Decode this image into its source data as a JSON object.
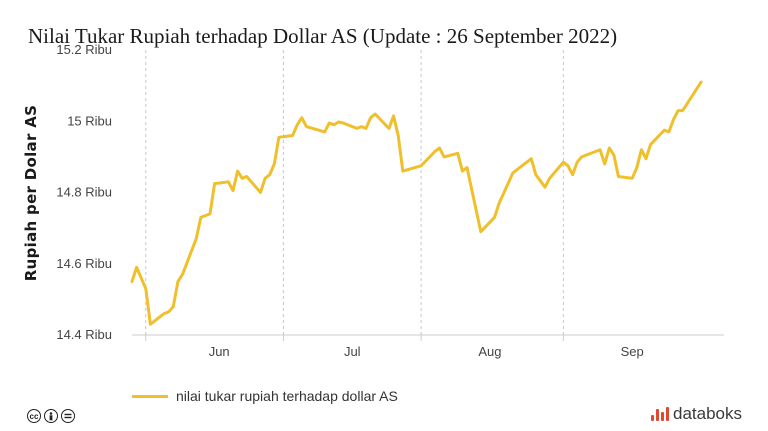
{
  "title": "Nilai Tukar Rupiah terhadap Dollar AS (Update : 26 September 2022)",
  "brand": "databoks",
  "colors": {
    "series": "#f0bf2c",
    "brand": "#e0492f"
  },
  "icons": [
    "creative-commons-icon",
    "attribution-icon",
    "no-derivatives-icon"
  ],
  "chart_data": {
    "type": "line",
    "ylabel": "Rupiah per Dolar AS",
    "ylim": [
      14400,
      15200
    ],
    "yticks": [
      {
        "value": 14400,
        "label": "14.4 Ribu"
      },
      {
        "value": 14600,
        "label": "14.6 Ribu"
      },
      {
        "value": 14800,
        "label": "14.8 Ribu"
      },
      {
        "value": 15000,
        "label": "15 Ribu"
      },
      {
        "value": 15200,
        "label": "15.2 Ribu"
      }
    ],
    "xlim": [
      "2022-05-20",
      "2022-09-26"
    ],
    "month_boundaries": [
      "2022-05-23",
      "2022-06-22",
      "2022-07-22",
      "2022-08-22"
    ],
    "xticks": [
      {
        "date": "2022-06-08",
        "label": "Jun"
      },
      {
        "date": "2022-07-07",
        "label": "Jul"
      },
      {
        "date": "2022-08-06",
        "label": "Aug"
      },
      {
        "date": "2022-09-06",
        "label": "Sep"
      }
    ],
    "grid": true,
    "legend": "bottom-left",
    "series": [
      {
        "name": "nilai tukar rupiah terhadap dollar AS",
        "points": [
          [
            "2022-05-20",
            14550
          ],
          [
            "2022-05-21",
            14590
          ],
          [
            "2022-05-23",
            14530
          ],
          [
            "2022-05-24",
            14430
          ],
          [
            "2022-05-27",
            14460
          ],
          [
            "2022-05-28",
            14465
          ],
          [
            "2022-05-29",
            14480
          ],
          [
            "2022-05-30",
            14550
          ],
          [
            "2022-05-31",
            14570
          ],
          [
            "2022-06-03",
            14670
          ],
          [
            "2022-06-04",
            14730
          ],
          [
            "2022-06-06",
            14740
          ],
          [
            "2022-06-07",
            14825
          ],
          [
            "2022-06-10",
            14830
          ],
          [
            "2022-06-11",
            14805
          ],
          [
            "2022-06-12",
            14860
          ],
          [
            "2022-06-13",
            14840
          ],
          [
            "2022-06-14",
            14845
          ],
          [
            "2022-06-17",
            14800
          ],
          [
            "2022-06-18",
            14840
          ],
          [
            "2022-06-19",
            14850
          ],
          [
            "2022-06-20",
            14880
          ],
          [
            "2022-06-21",
            14955
          ],
          [
            "2022-06-24",
            14960
          ],
          [
            "2022-06-25",
            14990
          ],
          [
            "2022-06-26",
            15010
          ],
          [
            "2022-06-27",
            14985
          ],
          [
            "2022-07-01",
            14970
          ],
          [
            "2022-07-02",
            14995
          ],
          [
            "2022-07-03",
            14990
          ],
          [
            "2022-07-04",
            14998
          ],
          [
            "2022-07-05",
            14995
          ],
          [
            "2022-07-08",
            14980
          ],
          [
            "2022-07-09",
            14985
          ],
          [
            "2022-07-10",
            14980
          ],
          [
            "2022-07-11",
            15010
          ],
          [
            "2022-07-12",
            15020
          ],
          [
            "2022-07-15",
            14980
          ],
          [
            "2022-07-16",
            15015
          ],
          [
            "2022-07-17",
            14960
          ],
          [
            "2022-07-18",
            14860
          ],
          [
            "2022-07-22",
            14875
          ],
          [
            "2022-07-25",
            14915
          ],
          [
            "2022-07-26",
            14925
          ],
          [
            "2022-07-27",
            14900
          ],
          [
            "2022-07-30",
            14910
          ],
          [
            "2022-07-31",
            14860
          ],
          [
            "2022-08-01",
            14870
          ],
          [
            "2022-08-04",
            14690
          ],
          [
            "2022-08-07",
            14730
          ],
          [
            "2022-08-08",
            14770
          ],
          [
            "2022-08-11",
            14855
          ],
          [
            "2022-08-12",
            14865
          ],
          [
            "2022-08-15",
            14895
          ],
          [
            "2022-08-16",
            14850
          ],
          [
            "2022-08-18",
            14815
          ],
          [
            "2022-08-19",
            14840
          ],
          [
            "2022-08-22",
            14885
          ],
          [
            "2022-08-23",
            14875
          ],
          [
            "2022-08-24",
            14850
          ],
          [
            "2022-08-25",
            14885
          ],
          [
            "2022-08-26",
            14900
          ],
          [
            "2022-08-29",
            14915
          ],
          [
            "2022-08-30",
            14920
          ],
          [
            "2022-08-31",
            14880
          ],
          [
            "2022-09-01",
            14925
          ],
          [
            "2022-09-02",
            14905
          ],
          [
            "2022-09-03",
            14845
          ],
          [
            "2022-09-06",
            14840
          ],
          [
            "2022-09-07",
            14870
          ],
          [
            "2022-09-08",
            14920
          ],
          [
            "2022-09-09",
            14895
          ],
          [
            "2022-09-10",
            14935
          ],
          [
            "2022-09-13",
            14975
          ],
          [
            "2022-09-14",
            14970
          ],
          [
            "2022-09-15",
            15005
          ],
          [
            "2022-09-16",
            15030
          ],
          [
            "2022-09-17",
            15030
          ],
          [
            "2022-09-20",
            15090
          ],
          [
            "2022-09-21",
            15110
          ]
        ]
      }
    ]
  }
}
